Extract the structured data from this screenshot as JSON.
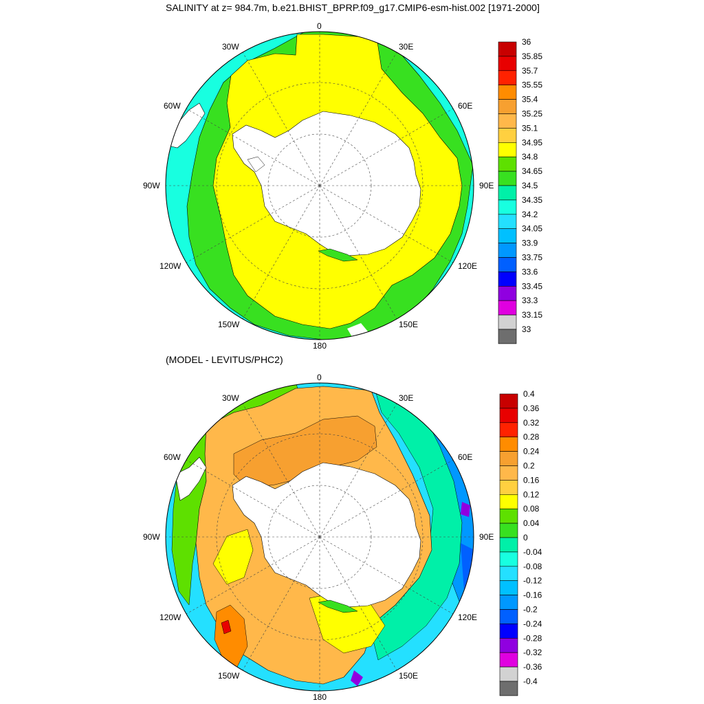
{
  "titles": {
    "main": "SALINITY at z= 984.7m, b.e21.BHIST_BPRP.f09_g17.CMIP6-esm-hist.002 [1971-2000]",
    "sub": "(MODEL - LEVITUS/PHC2)"
  },
  "longitude_labels": {
    "lon_0": "0",
    "lon_30e": "30E",
    "lon_60e": "60E",
    "lon_90e": "90E",
    "lon_120e": "120E",
    "lon_150e": "150E",
    "lon_180": "180",
    "lon_150w": "150W",
    "lon_120w": "120W",
    "lon_90w": "90W",
    "lon_60w": "60W",
    "lon_30w": "30W"
  },
  "top_colorbar": {
    "labels": [
      "36",
      "35.85",
      "35.7",
      "35.55",
      "35.4",
      "35.25",
      "35.1",
      "34.95",
      "34.8",
      "34.65",
      "34.5",
      "34.35",
      "34.2",
      "34.05",
      "33.9",
      "33.75",
      "33.6",
      "33.45",
      "33.3",
      "33.15",
      "33"
    ],
    "colors": [
      "#c80000",
      "#e80000",
      "#ff2200",
      "#ff8c00",
      "#f7a030",
      "#ffb84a",
      "#ffd040",
      "#ffff00",
      "#5ee000",
      "#38e020",
      "#00f0a8",
      "#18ffe0",
      "#24e0ff",
      "#00c0ff",
      "#0098ff",
      "#0060ff",
      "#0000ff",
      "#9000e0",
      "#e000e0",
      "#d2d2d2",
      "#6e6e6e"
    ]
  },
  "bottom_colorbar": {
    "labels": [
      "0.4",
      "0.36",
      "0.32",
      "0.28",
      "0.24",
      "0.2",
      "0.16",
      "0.12",
      "0.08",
      "0.04",
      "0",
      "-0.04",
      "-0.08",
      "-0.12",
      "-0.16",
      "-0.2",
      "-0.24",
      "-0.28",
      "-0.32",
      "-0.36",
      "-0.4"
    ],
    "colors": [
      "#c80000",
      "#e80000",
      "#ff2200",
      "#ff8c00",
      "#f7a030",
      "#ffb84a",
      "#ffd040",
      "#ffff00",
      "#5ee000",
      "#38e020",
      "#00f0a8",
      "#18ffe0",
      "#24e0ff",
      "#00c0ff",
      "#0098ff",
      "#0060ff",
      "#0000ff",
      "#9000e0",
      "#e000e0",
      "#d2d2d2",
      "#6e6e6e"
    ]
  }
}
